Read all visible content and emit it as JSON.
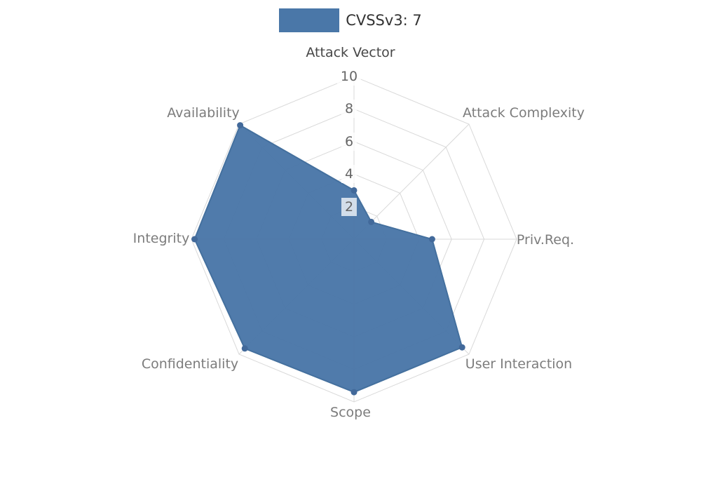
{
  "page": {
    "background": "#ffffff"
  },
  "chart_data": {
    "type": "radar",
    "title": "",
    "legend": {
      "position": "top",
      "label": "CVSSv3: 7",
      "swatch_color": "#4a77a8",
      "text_color": "#333333"
    },
    "categories": [
      "Attack Vector",
      "Attack Complexity",
      "Priv.Req.",
      "User Interaction",
      "Scope",
      "Confidentiality",
      "Integrity",
      "Availability"
    ],
    "series": [
      {
        "name": "CVSSv3: 7",
        "color": "#4a77a8",
        "border_color": "#44709e",
        "point_color": "#42699a",
        "fill_opacity": 0.97,
        "values": [
          3,
          1.5,
          4.8,
          9.4,
          9.4,
          9.5,
          9.8,
          9.9
        ]
      }
    ],
    "r_axis": {
      "min": 0,
      "max": 10,
      "ticks": [
        2,
        4,
        6,
        8,
        10
      ],
      "tick_color": "#666666",
      "tick_backdrop": "rgba(255,255,255,0.75)"
    },
    "grid": {
      "shape": "polygon",
      "show": true,
      "color": "#d9d9d9",
      "spoke_color": "#d9d9d9"
    },
    "point_label_colors": [
      "#474747",
      "#7c7c7c",
      "#7c7c7c",
      "#7c7c7c",
      "#7c7c7c",
      "#7c7c7c",
      "#7c7c7c",
      "#7c7c7c"
    ]
  }
}
